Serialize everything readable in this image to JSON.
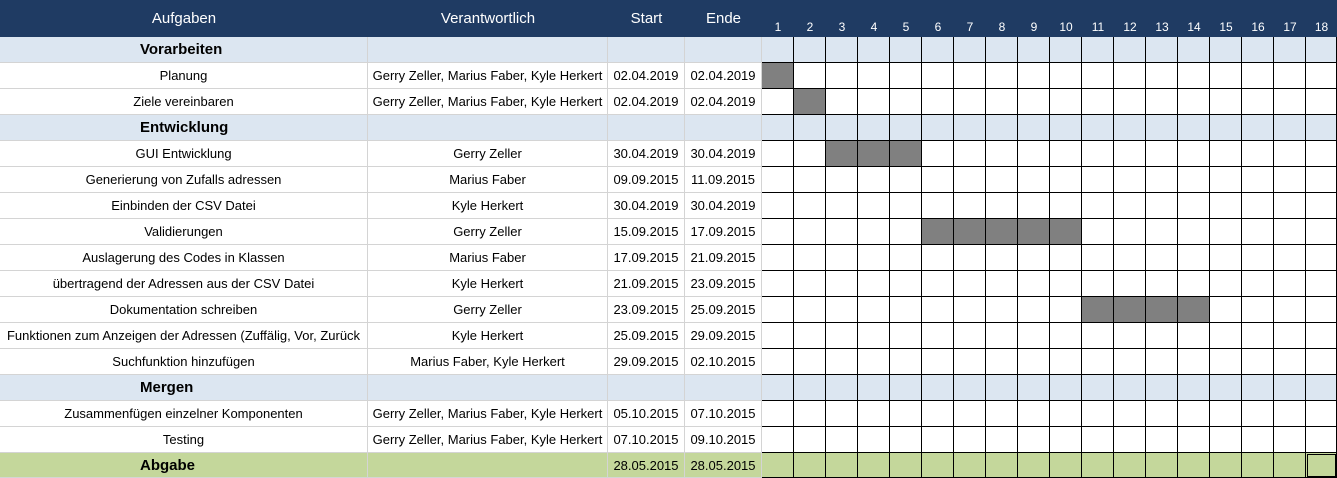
{
  "headers": {
    "task": "Aufgaben",
    "owner": "Verantwortlich",
    "start": "Start",
    "end": "Ende"
  },
  "week_numbers": [
    "1",
    "2",
    "3",
    "4",
    "5",
    "6",
    "7",
    "8",
    "9",
    "10",
    "11",
    "12",
    "13",
    "14",
    "15",
    "16",
    "17",
    "18"
  ],
  "rows": [
    {
      "type": "section",
      "task": "Vorarbeiten",
      "owner": "",
      "start": "",
      "end": "",
      "bars": []
    },
    {
      "type": "task",
      "task": "Planung",
      "owner": "Gerry Zeller, Marius Faber, Kyle Herkert",
      "start": "02.04.2019",
      "end": "02.04.2019",
      "bars": [
        1
      ]
    },
    {
      "type": "task",
      "task": "Ziele vereinbaren",
      "owner": "Gerry Zeller, Marius Faber, Kyle Herkert",
      "start": "02.04.2019",
      "end": "02.04.2019",
      "bars": [
        2
      ]
    },
    {
      "type": "section",
      "task": "Entwicklung",
      "owner": "",
      "start": "",
      "end": "",
      "bars": []
    },
    {
      "type": "task",
      "task": "GUI Entwicklung",
      "owner": "Gerry Zeller",
      "start": "30.04.2019",
      "end": "30.04.2019",
      "bars": [
        3,
        4,
        5
      ]
    },
    {
      "type": "task",
      "task": "Generierung von Zufalls adressen",
      "owner": "Marius Faber",
      "start": "09.09.2015",
      "end": "11.09.2015",
      "bars": []
    },
    {
      "type": "task",
      "task": "Einbinden der CSV Datei",
      "owner": "Kyle Herkert",
      "start": "30.04.2019",
      "end": "30.04.2019",
      "bars": []
    },
    {
      "type": "task",
      "task": "Validierungen",
      "owner": "Gerry Zeller",
      "start": "15.09.2015",
      "end": "17.09.2015",
      "bars": [
        6,
        7,
        8,
        9,
        10
      ]
    },
    {
      "type": "task",
      "task": "Auslagerung des Codes in Klassen",
      "owner": "Marius Faber",
      "start": "17.09.2015",
      "end": "21.09.2015",
      "bars": []
    },
    {
      "type": "task",
      "task": "übertragend der Adressen aus der CSV Datei",
      "owner": "Kyle Herkert",
      "start": "21.09.2015",
      "end": "23.09.2015",
      "bars": []
    },
    {
      "type": "task",
      "task": "Dokumentation schreiben",
      "owner": "Gerry Zeller",
      "start": "23.09.2015",
      "end": "25.09.2015",
      "bars": [
        11,
        12,
        13,
        14
      ]
    },
    {
      "type": "task",
      "task": "Funktionen zum Anzeigen der Adressen (Zuffälig, Vor, Zurück",
      "owner": "Kyle Herkert",
      "start": "25.09.2015",
      "end": "29.09.2015",
      "bars": []
    },
    {
      "type": "task",
      "task": "Suchfunktion hinzufügen",
      "owner": "Marius Faber, Kyle Herkert",
      "start": "29.09.2015",
      "end": "02.10.2015",
      "bars": []
    },
    {
      "type": "section",
      "task": "Mergen",
      "owner": "",
      "start": "",
      "end": "",
      "bars": []
    },
    {
      "type": "task",
      "task": "Zusammenfügen einzelner Komponenten",
      "owner": "Gerry Zeller, Marius Faber, Kyle Herkert",
      "start": "05.10.2015",
      "end": "07.10.2015",
      "bars": []
    },
    {
      "type": "task",
      "task": "Testing",
      "owner": "Gerry Zeller, Marius Faber, Kyle Herkert",
      "start": "07.10.2015",
      "end": "09.10.2015",
      "bars": []
    },
    {
      "type": "final",
      "task": "Abgabe",
      "owner": "",
      "start": "28.05.2015",
      "end": "28.05.2015",
      "bars": [],
      "marker": 18
    }
  ],
  "colors": {
    "header": "#1f3b63",
    "section": "#dce6f1",
    "final": "#c4d79b",
    "bar": "#808080"
  }
}
